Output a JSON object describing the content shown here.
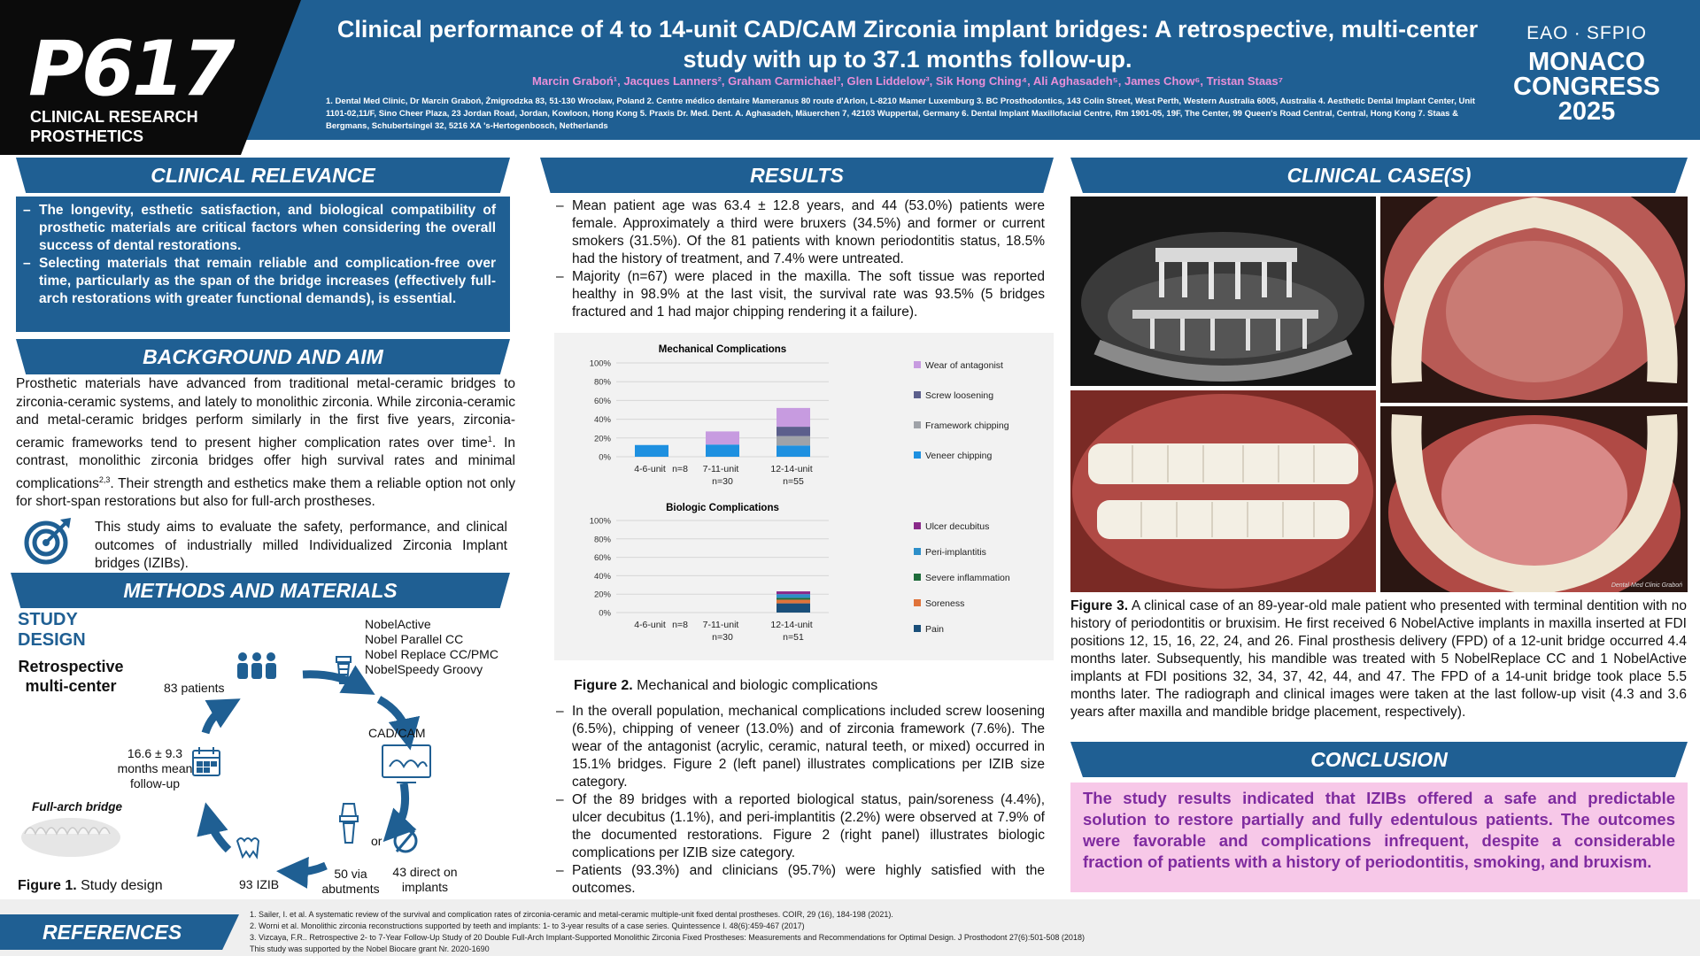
{
  "header": {
    "poster_id": "P617",
    "category_line1": "CLINICAL RESEARCH",
    "category_line2": "PROSTHETICS",
    "title": "Clinical performance of 4 to 14-unit CAD/CAM Zirconia implant bridges: A retrospective, multi-center study with up to 37.1 months follow-up.",
    "authors": "Marcin Graboń¹, Jacques Lanners², Graham Carmichael³, Glen Liddelow³, Sik Hong Ching⁴, Ali Aghasadeh⁵, James Chow⁶,  Tristan Staas⁷",
    "affiliations": "1. Dental Med Clinic, Dr Marcin Graboń, Żmigrodzka 83, 51-130 Wrocław, Poland 2. Centre médico dentaire Mameranus 80 route d'Arlon, L-8210 Mamer Luxemburg 3. BC Prosthodontics, 143 Colin Street, West Perth, Western Australia 6005, Australia 4. Aesthetic Dental Implant Center, Unit 1101-02,11/F, Sino Cheer Plaza, 23 Jordan Road, Jordan, Kowloon, Hong Kong 5. Praxis Dr. Med. Dent. A. Aghasadeh, Mäuerchen 7, 42103 Wuppertal, Germany 6.  Dental Implant   Maxillofacial Centre, Rm 1901-05, 19F, The Center, 99 Queen's Road Central, Central, Hong Kong 7. Staas & Bergmans, Schubertsingel 32, 5216 XA 's-Hertogenbosch, Netherlands",
    "congress_top": "EAO  ∙  SFPIO",
    "congress_city_line1": "MONACO",
    "congress_city_line2": "CONGRESS",
    "congress_year": "2025"
  },
  "sections": {
    "relevance": "CLINICAL RELEVANCE",
    "background": "BACKGROUND AND AIM",
    "methods": "METHODS AND MATERIALS",
    "results": "RESULTS",
    "clinical_cases": "CLINICAL CASE(S)",
    "conclusion": "CONCLUSION",
    "references": "REFERENCES"
  },
  "relevance_bullets": [
    "The longevity, esthetic satisfaction, and biological compatibility of prosthetic materials are critical factors when considering the overall success of dental restorations.",
    "Selecting materials that remain reliable and complication-free over time, particularly as the span of the bridge increases (effectively full-arch restorations with greater functional demands), is essential."
  ],
  "background": {
    "p1_a": "Prosthetic materials have advanced from traditional metal-ceramic bridges to zirconia-ceramic systems, and lately to monolithic zirconia. While zirconia-ceramic and metal-ceramic bridges perform similarly in the first five years, zirconia-ceramic frameworks tend to present higher complication rates over time",
    "p1_sup1": "1",
    "p1_b": ". In contrast, monolithic zirconia bridges offer high survival rates and minimal complications",
    "p1_sup2": "2,3",
    "p1_c": ". Their strength and esthetics make them a reliable option not only for short-span restorations but also for full-arch prostheses.",
    "aim": "This study aims to evaluate the safety, performance, and clinical outcomes of industrially milled Individualized Zirconia Implant bridges (IZIBs)."
  },
  "methods": {
    "study_design_line1": "STUDY",
    "study_design_line2": "DESIGN",
    "design_type_line1": "Retrospective",
    "design_type_line2": "multi-center",
    "patients": "83 patients",
    "implants_line1": "NobelActive",
    "implants_line2": "Nobel Parallel CC",
    "implants_line3": "Nobel Replace CC/PMC",
    "implants_line4": "NobelSpeedy Groovy",
    "cadcam": "CAD/CAM",
    "followup_line1": "16.6 ± 9.3",
    "followup_line2": "months mean",
    "followup_line3": "follow-up",
    "abut_line1": "50 via",
    "abut_line2": "abutments",
    "or": "or",
    "direct_line1": "43 direct on",
    "direct_line2": "implants",
    "izib": "93 IZIB",
    "full_arch": "Full-arch bridge",
    "fig1_bold": "Figure 1.",
    "fig1_text": " Study design"
  },
  "results": {
    "bullets_top": [
      "Mean patient age was 63.4 ± 12.8 years, and 44 (53.0%) patients were female. Approximately a third were bruxers (34.5%) and former or current smokers (31.5%). Of the 81 patients with known periodontitis status, 18.5% had the history of treatment, and 7.4% were untreated.",
      "Majority (n=67) were placed in the maxilla. The soft tissue was reported healthy in 98.9% at the last visit, the survival rate was 93.5% (5 bridges fractured and 1 had major chipping rendering it a failure)."
    ],
    "bullets_bottom": [
      "In the overall population, mechanical complications included screw loosening (6.5%), chipping of veneer (13.0%) and of zirconia framework (7.6%). The wear of the antagonist (acrylic, ceramic, natural teeth, or mixed) occurred in 15.1% bridges. Figure 2 (left panel) illustrates complications per IZIB size category.",
      "Of the 89 bridges with a reported biological status, pain/soreness (4.4%), ulcer decubitus (1.1%), and peri-implantitis (2.2%) were observed at 7.9% of the documented restorations. Figure 2 (right panel) illustrates biologic complications per IZIB size category.",
      "Patients (93.3%) and clinicians (95.7%) were highly satisfied with the outcomes."
    ],
    "fig2_bold": "Figure 2.",
    "fig2_text": " Mechanical and biologic complications"
  },
  "chart_data": [
    {
      "type": "bar",
      "stacked": true,
      "title": "Mechanical Complications",
      "categories": [
        "4-6-unit",
        "7-11-unit",
        "12-14-unit"
      ],
      "category_n": [
        "n=8",
        "n=30",
        "n=55"
      ],
      "y_ticks": [
        "0%",
        "20%",
        "40%",
        "60%",
        "80%",
        "100%"
      ],
      "ylim": [
        0,
        100
      ],
      "series": [
        {
          "name": "Veneer chipping",
          "color": "#1e90e0",
          "values": [
            12.5,
            13,
            12
          ]
        },
        {
          "name": "Framework chipping",
          "color": "#9fa2a8",
          "values": [
            0,
            0,
            10
          ]
        },
        {
          "name": "Screw loosening",
          "color": "#5c5f8c",
          "values": [
            0,
            0,
            10
          ]
        },
        {
          "name": "Wear of antagonist",
          "color": "#c79be0",
          "values": [
            0,
            14,
            20
          ]
        }
      ]
    },
    {
      "type": "bar",
      "stacked": true,
      "title": "Biologic Complications",
      "categories": [
        "4-6-unit",
        "7-11-unit",
        "12-14-unit"
      ],
      "category_n": [
        "n=8",
        "n=30",
        "n=51"
      ],
      "y_ticks": [
        "0%",
        "20%",
        "40%",
        "60%",
        "80%",
        "100%"
      ],
      "ylim": [
        0,
        100
      ],
      "series": [
        {
          "name": "Pain",
          "color": "#1a4f7a",
          "values": [
            0,
            0,
            10
          ]
        },
        {
          "name": "Soreness",
          "color": "#e0733a",
          "values": [
            0,
            0,
            4
          ]
        },
        {
          "name": "Severe inflammation",
          "color": "#1e6b3a",
          "values": [
            0,
            0,
            2
          ]
        },
        {
          "name": "Peri-implantitis",
          "color": "#2d8fc9",
          "values": [
            0,
            0,
            4
          ]
        },
        {
          "name": "Ulcer decubitus",
          "color": "#8a2a8a",
          "values": [
            0,
            0,
            3
          ]
        }
      ]
    }
  ],
  "clinical_case": {
    "photo_credit": "Dental Med Clinic Graboń",
    "fig3_bold": "Figure 3.",
    "fig3_text": " A clinical case of an 89-year-old male patient who presented with terminal dentition with no history of periodontitis or bruxisim.  He first received 6 NobelActive implants in maxilla inserted at FDI positions 12, 15, 16, 22, 24, and 26. Final prosthesis delivery (FPD) of a 12-unit bridge occurred 4.4 months later. Subsequently, his mandible was treated with 5 NobelReplace CC and 1 NobelActive implants at FDI positions 32, 34, 37, 42, 44, and 47. The FPD of a 14-unit bridge took place 5.5 months later. The radiograph and clinical images were taken at the last follow-up visit (4.3 and 3.6 years after maxilla and mandible bridge placement, respectively)."
  },
  "conclusion": "The study results indicated that IZIBs offered a safe and predictable solution to restore partially and fully edentulous patients. The outcomes were favorable and complications infrequent, despite a considerable fraction of patients with a history of periodontitis, smoking, and bruxism.",
  "references": [
    "1.  Sailer, I. et al. A systematic review of the survival and complication rates of zirconia-ceramic and metal-ceramic multiple-unit fixed dental prostheses. COIR, 29 (16), 184-198 (2021).",
    "2.  Worni et al. Monolithic zirconia reconstructions supported by teeth and implants: 1- to 3-year results of a case series. Quintessence I. 48(6):459-467 (2017)",
    "3.  Vizcaya, F.R.. Retrospective 2- to 7-Year Follow-Up Study of 20 Double Full-Arch Implant-Supported Monolithic Zirconia Fixed Prostheses: Measurements and Recommendations for Optimal Design. J Prosthodont 27(6):501-508 (2018)",
    "     This study was supported by the Nobel Biocare grant Nr. 2020-1690"
  ]
}
